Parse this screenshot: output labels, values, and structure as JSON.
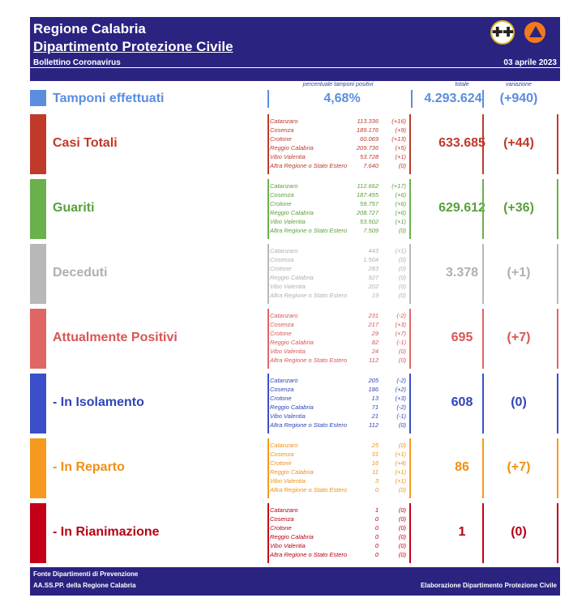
{
  "header": {
    "title1": "Regione Calabria",
    "title2": "Dipartimento Protezione Civile",
    "subtitle": "Bollettino Coronavirus",
    "date": "03 aprile 2023"
  },
  "columns": {
    "perc": "percentuale tamponi positivi",
    "totale": "totale",
    "variazione": "variazione"
  },
  "tamponi": {
    "label": "Tamponi effettuati",
    "perc": "4,68%",
    "totale": "4.293.624",
    "variazione": "(+940)",
    "color": "#5a8de0"
  },
  "sections": [
    {
      "label": "Casi Totali",
      "color": "#c0392b",
      "text_color": "#c0392b",
      "totale": "633.685",
      "variazione": "(+44)",
      "rows": [
        {
          "name": "Catanzaro",
          "value": "113.336",
          "delta": "(+16)"
        },
        {
          "name": "Cosenza",
          "value": "189.176",
          "delta": "(+9)"
        },
        {
          "name": "Crotone",
          "value": "60.069",
          "delta": "(+13)"
        },
        {
          "name": "Reggio Calabria",
          "value": "209.736",
          "delta": "(+5)"
        },
        {
          "name": "Vibo Valentia",
          "value": "53.728",
          "delta": "(+1)"
        },
        {
          "name": "Altra Regione o Stato Estero",
          "value": "7.640",
          "delta": "(0)"
        }
      ]
    },
    {
      "label": "Guariti",
      "color": "#6ab04c",
      "text_color": "#5aa03c",
      "totale": "629.612",
      "variazione": "(+36)",
      "rows": [
        {
          "name": "Catanzaro",
          "value": "112.662",
          "delta": "(+17)"
        },
        {
          "name": "Cosenza",
          "value": "187.455",
          "delta": "(+6)"
        },
        {
          "name": "Crotone",
          "value": "59.757",
          "delta": "(+6)"
        },
        {
          "name": "Reggio Calabria",
          "value": "208.727",
          "delta": "(+6)"
        },
        {
          "name": "Vibo Valentia",
          "value": "53.502",
          "delta": "(+1)"
        },
        {
          "name": "Altra Regione o Stato Estero",
          "value": "7.509",
          "delta": "(0)"
        }
      ]
    },
    {
      "label": "Deceduti",
      "color": "#b8b8b8",
      "text_color": "#b0b0b0",
      "totale": "3.378",
      "variazione": "(+1)",
      "rows": [
        {
          "name": "Catanzaro",
          "value": "443",
          "delta": "(+1)"
        },
        {
          "name": "Cosenza",
          "value": "1.504",
          "delta": "(0)"
        },
        {
          "name": "Crotone",
          "value": "283",
          "delta": "(0)"
        },
        {
          "name": "Reggio Calabria",
          "value": "927",
          "delta": "(0)"
        },
        {
          "name": "Vibo Valentia",
          "value": "202",
          "delta": "(0)"
        },
        {
          "name": "Altra Regione o Stato Estero",
          "value": "19",
          "delta": "(0)"
        }
      ]
    },
    {
      "label": "Attualmente Positivi",
      "color": "#e06666",
      "text_color": "#d95555",
      "totale": "695",
      "variazione": "(+7)",
      "rows": [
        {
          "name": "Catanzaro",
          "value": "231",
          "delta": "(-2)"
        },
        {
          "name": "Cosenza",
          "value": "217",
          "delta": "(+3)"
        },
        {
          "name": "Crotone",
          "value": "29",
          "delta": "(+7)"
        },
        {
          "name": "Reggio Calabria",
          "value": "82",
          "delta": "(-1)"
        },
        {
          "name": "Vibo Valentia",
          "value": "24",
          "delta": "(0)"
        },
        {
          "name": "Altra Regione o Stato Estero",
          "value": "112",
          "delta": "(0)"
        }
      ]
    },
    {
      "label": " - In Isolamento",
      "color": "#3a4fc9",
      "text_color": "#2f45b8",
      "totale": "608",
      "variazione": "(0)",
      "rows": [
        {
          "name": "Catanzaro",
          "value": "205",
          "delta": "(-2)"
        },
        {
          "name": "Cosenza",
          "value": "186",
          "delta": "(+2)"
        },
        {
          "name": "Crotone",
          "value": "13",
          "delta": "(+3)"
        },
        {
          "name": "Reggio Calabria",
          "value": "71",
          "delta": "(-2)"
        },
        {
          "name": "Vibo Valentia",
          "value": "21",
          "delta": "(-1)"
        },
        {
          "name": "Altra Regione o Stato Estero",
          "value": "112",
          "delta": "(0)"
        }
      ]
    },
    {
      "label": " - In Reparto",
      "color": "#f59a1e",
      "text_color": "#f09015",
      "totale": "86",
      "variazione": "(+7)",
      "rows": [
        {
          "name": "Catanzaro",
          "value": "25",
          "delta": "(0)"
        },
        {
          "name": "Cosenza",
          "value": "31",
          "delta": "(+1)"
        },
        {
          "name": "Crotone",
          "value": "16",
          "delta": "(+4)"
        },
        {
          "name": "Reggio Calabria",
          "value": "11",
          "delta": "(+1)"
        },
        {
          "name": "Vibo Valentia",
          "value": "3",
          "delta": "(+1)"
        },
        {
          "name": "Altra Regione o Stato Estero",
          "value": "0",
          "delta": "(0)"
        }
      ]
    },
    {
      "label": " - In Rianimazione",
      "color": "#c40018",
      "text_color": "#b80015",
      "totale": "1",
      "variazione": "(0)",
      "rows": [
        {
          "name": "Catanzaro",
          "value": "1",
          "delta": "(0)"
        },
        {
          "name": "Cosenza",
          "value": "0",
          "delta": "(0)"
        },
        {
          "name": "Crotone",
          "value": "0",
          "delta": "(0)"
        },
        {
          "name": "Reggio Calabria",
          "value": "0",
          "delta": "(0)"
        },
        {
          "name": "Vibo Valentia",
          "value": "0",
          "delta": "(0)"
        },
        {
          "name": "Altra Regione o Stato Estero",
          "value": "0",
          "delta": "(0)"
        }
      ]
    }
  ],
  "footer": {
    "line1": "Fonte Dipartimenti di Prevenzione",
    "line2": "AA.SS.PP.  della Regione Calabria",
    "right": "Elaborazione Dipartimento Protezione Civile"
  }
}
